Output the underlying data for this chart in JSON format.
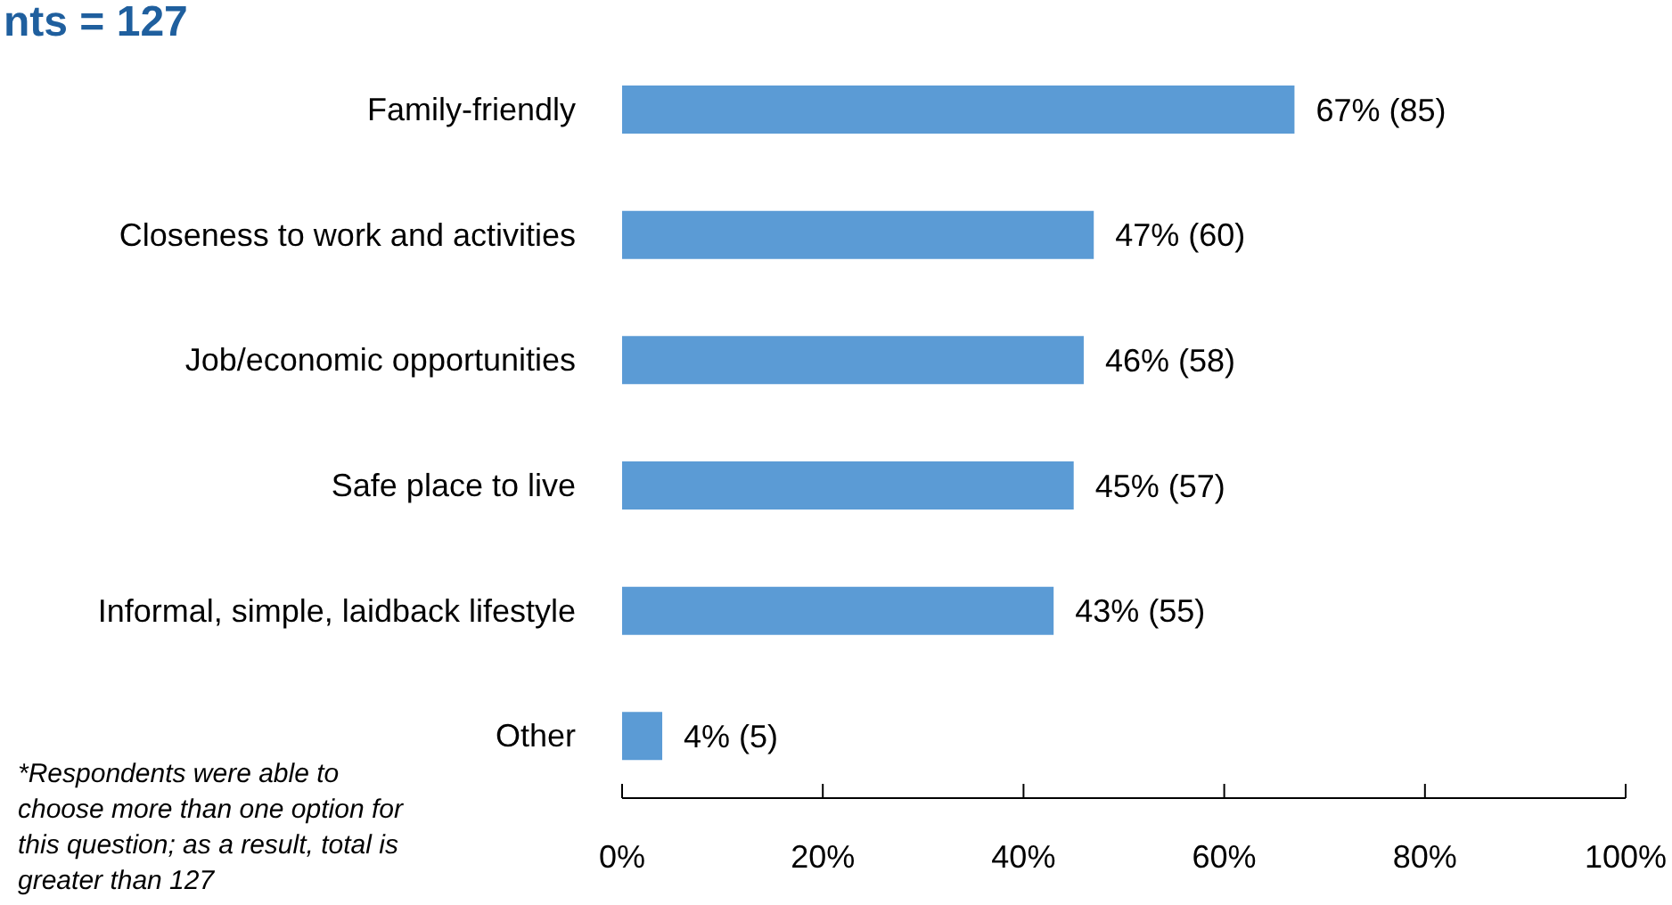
{
  "chart_data": {
    "type": "bar",
    "orientation": "horizontal",
    "title": "nts = 127",
    "categories": [
      "Family-friendly",
      "Closeness to work and activities",
      "Job/economic opportunities",
      "Safe place to live",
      "Informal, simple, laidback lifestyle",
      "Other"
    ],
    "values": [
      67,
      47,
      46,
      45,
      43,
      4
    ],
    "value_labels": [
      "67% (85)",
      "47% (60)",
      "46% (58)",
      "45% (57)",
      "43% (55)",
      "4% (5)"
    ],
    "color": "#5b9bd5",
    "xlim": [
      0,
      100
    ],
    "xticks": [
      {
        "value": 0,
        "label": "0%"
      },
      {
        "value": 20,
        "label": "20%"
      },
      {
        "value": 40,
        "label": "40%"
      },
      {
        "value": 60,
        "label": "60%"
      },
      {
        "value": 80,
        "label": "80%"
      },
      {
        "value": 100,
        "label": "100%"
      }
    ],
    "grid": false,
    "annotations": [
      "*Respondents were able to choose more than one option for this question; as a result, total is greater than 127"
    ]
  }
}
